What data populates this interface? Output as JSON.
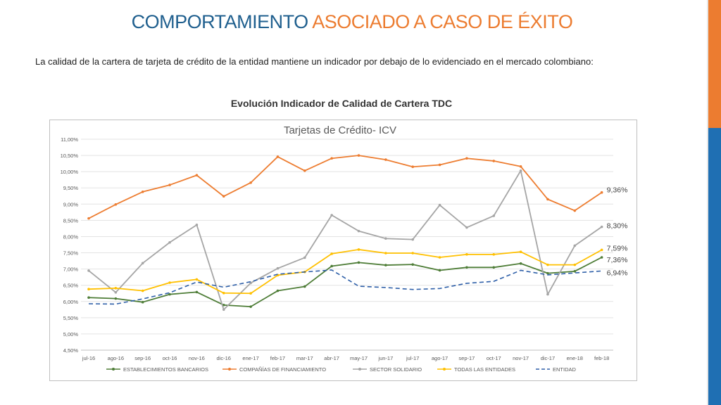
{
  "slide": {
    "title_part1": "COMPORTAMIENTO",
    "title_part2": "ASOCIADO A CASO DE ÉXITO",
    "intro": "La calidad de la cartera de tarjeta de crédito de la entidad mantiene un indicador por debajo de lo evidenciado en el mercado colombiano:",
    "chart_caption": "Evolución Indicador de Calidad de Cartera TDC"
  },
  "colors": {
    "title_blue": "#1f5f8e",
    "title_orange": "#ec7c30",
    "side_bar_orange": "#ec7c30",
    "side_bar_blue": "#1f6fb3"
  },
  "chart_data": {
    "type": "line",
    "title": "Tarjetas de Crédito- ICV",
    "categories": [
      "jul-16",
      "ago-16",
      "sep-16",
      "oct-16",
      "nov-16",
      "dic-16",
      "ene-17",
      "feb-17",
      "mar-17",
      "abr-17",
      "may-17",
      "jun-17",
      "jul-17",
      "ago-17",
      "sep-17",
      "oct-17",
      "nov-17",
      "dic-17",
      "ene-18",
      "feb-18"
    ],
    "yticks": [
      "4,50%",
      "5,00%",
      "5,50%",
      "6,00%",
      "6,50%",
      "7,00%",
      "7,50%",
      "8,00%",
      "8,50%",
      "9,00%",
      "9,50%",
      "10,00%",
      "10,50%",
      "11,00%"
    ],
    "ylim": [
      4.5,
      11.0
    ],
    "grid": true,
    "legend_position": "bottom",
    "series": [
      {
        "name": "ESTABLECIMIENTOS BANCARIOS",
        "color": "#4e7d37",
        "dash": false,
        "marker": "circle",
        "values": [
          6.12,
          6.09,
          5.98,
          6.22,
          6.29,
          5.89,
          5.84,
          6.33,
          6.46,
          7.09,
          7.2,
          7.12,
          7.14,
          6.96,
          7.05,
          7.05,
          7.17,
          6.87,
          6.93,
          7.36
        ],
        "end_label": "7,36%"
      },
      {
        "name": "COMPAÑÍAS DE FINANCIAMIENTO",
        "color": "#ed7d31",
        "dash": false,
        "marker": "circle",
        "values": [
          8.56,
          8.99,
          9.38,
          9.59,
          9.89,
          9.24,
          9.66,
          10.46,
          10.03,
          10.41,
          10.5,
          10.37,
          10.15,
          10.21,
          10.41,
          10.33,
          10.16,
          9.15,
          8.8,
          9.36
        ],
        "end_label": "9,36%"
      },
      {
        "name": "SECTOR SOLIDARIO",
        "color": "#a5a5a5",
        "dash": false,
        "marker": "circle",
        "values": [
          6.95,
          6.28,
          7.18,
          7.82,
          8.36,
          5.75,
          6.57,
          7.02,
          7.35,
          8.66,
          8.17,
          7.94,
          7.91,
          8.97,
          8.28,
          8.64,
          10.03,
          6.22,
          7.72,
          8.3
        ],
        "end_label": "8,30%"
      },
      {
        "name": "TODAS LAS ENTIDADES",
        "color": "#ffc000",
        "dash": false,
        "marker": "circle",
        "values": [
          6.38,
          6.41,
          6.33,
          6.58,
          6.68,
          6.26,
          6.25,
          6.81,
          6.91,
          7.47,
          7.6,
          7.49,
          7.49,
          7.36,
          7.45,
          7.45,
          7.53,
          7.13,
          7.13,
          7.59
        ],
        "end_label": "7,59%"
      },
      {
        "name": "ENTIDAD",
        "color": "#2e5fa8",
        "dash": true,
        "marker": "none",
        "values": [
          5.93,
          5.92,
          6.08,
          6.27,
          6.6,
          6.44,
          6.61,
          6.84,
          6.91,
          6.97,
          6.47,
          6.43,
          6.37,
          6.4,
          6.56,
          6.62,
          6.96,
          6.82,
          6.88,
          6.94
        ],
        "end_label": "6,94%"
      }
    ]
  }
}
